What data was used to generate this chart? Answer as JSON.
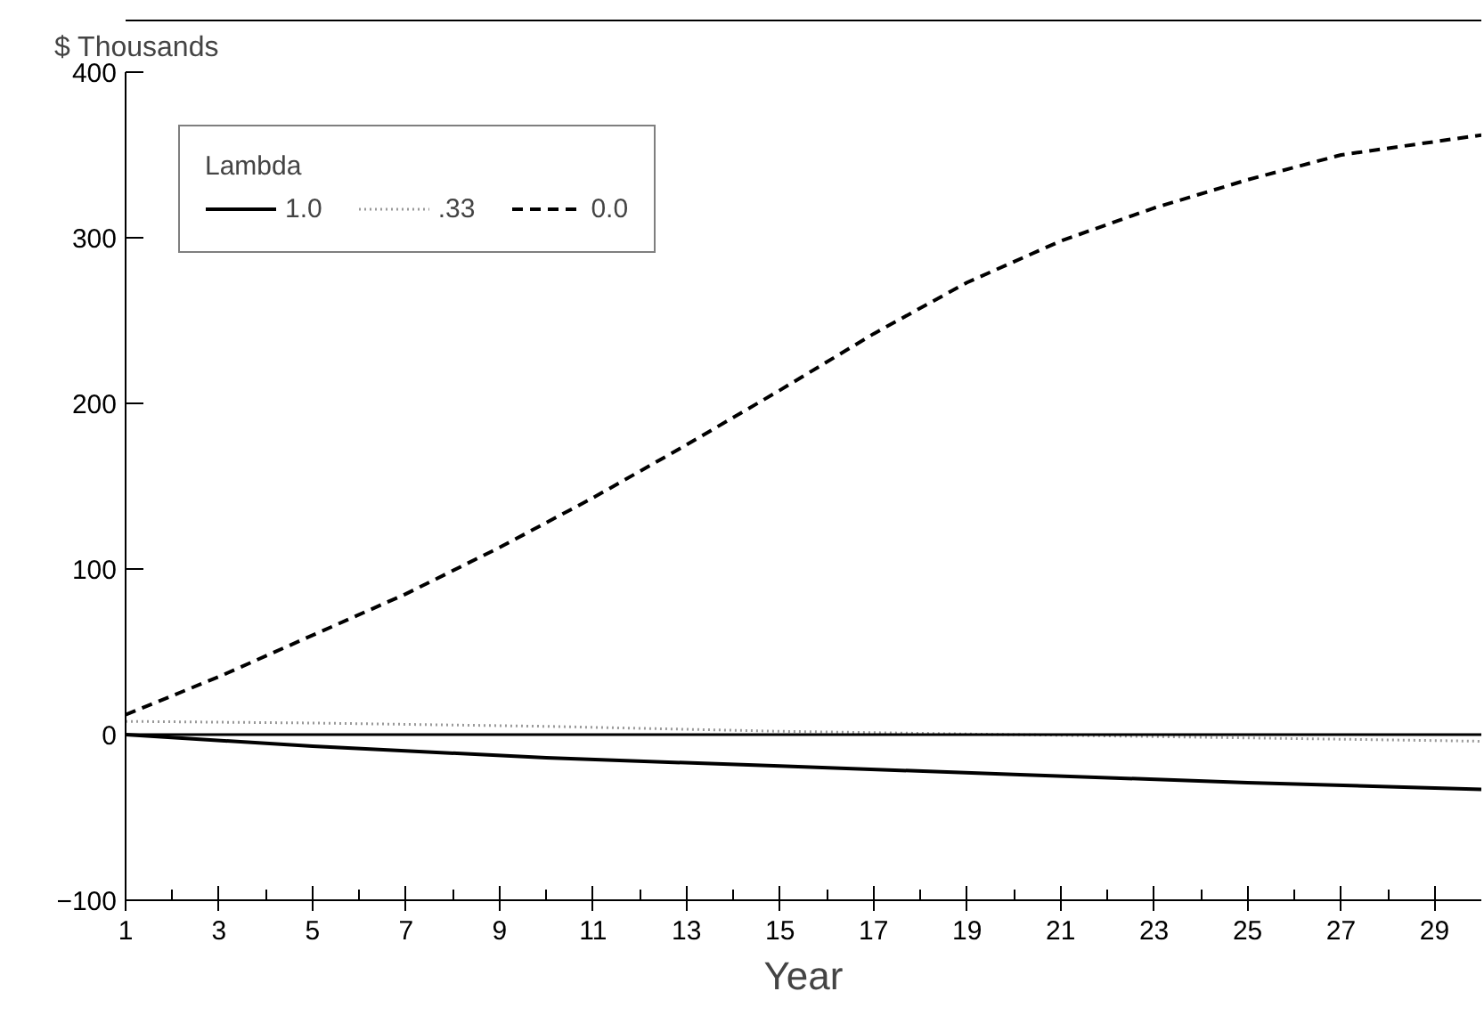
{
  "chart_data": {
    "type": "line",
    "ylabel": "$ Thousands",
    "xlabel": "Year",
    "legend_title": "Lambda",
    "series": [
      {
        "name": "1.0",
        "color": "#000000",
        "line_style": "solid",
        "x": [
          1,
          5,
          10,
          15,
          20,
          25,
          30
        ],
        "values": [
          0,
          -7,
          -14,
          -19,
          -24,
          -29,
          -33
        ]
      },
      {
        "name": ".33",
        "color": "#999999",
        "line_style": "dotted",
        "x": [
          1,
          5,
          10,
          15,
          20,
          25,
          30
        ],
        "values": [
          8,
          7,
          5,
          2,
          0,
          -2,
          -4
        ]
      },
      {
        "name": "0.0",
        "color": "#000000",
        "line_style": "dashed",
        "x": [
          1,
          3,
          5,
          7,
          9,
          11,
          13,
          15,
          17,
          19,
          21,
          23,
          25,
          27,
          29,
          30
        ],
        "values": [
          12,
          35,
          60,
          85,
          113,
          143,
          175,
          208,
          242,
          273,
          298,
          318,
          335,
          350,
          358,
          362
        ]
      }
    ],
    "xlim": [
      1,
      30
    ],
    "xticks": [
      1,
      {
        "value": 2,
        "label": null
      },
      3,
      {
        "value": 4,
        "label": null
      },
      5,
      {
        "value": 6,
        "label": null
      },
      7,
      {
        "value": 8,
        "label": null
      },
      9,
      {
        "value": 10,
        "label": null
      },
      11,
      {
        "value": 12,
        "label": null
      },
      13,
      {
        "value": 14,
        "label": null
      },
      15,
      {
        "value": 16,
        "label": null
      },
      17,
      {
        "value": 18,
        "label": null
      },
      19,
      {
        "value": 20,
        "label": null
      },
      21,
      {
        "value": 22,
        "label": null
      },
      23,
      {
        "value": 24,
        "label": null
      },
      25,
      {
        "value": 26,
        "label": null
      },
      27,
      {
        "value": 28,
        "label": null
      },
      29
    ],
    "ylim": [
      -100,
      400
    ],
    "yticks": [
      -100,
      0,
      100,
      200,
      300,
      400
    ],
    "ref_lines": [
      {
        "axis": "y",
        "value": 0,
        "color": "#000000",
        "line_style": "solid"
      }
    ],
    "grid": false,
    "legend": "top left"
  }
}
